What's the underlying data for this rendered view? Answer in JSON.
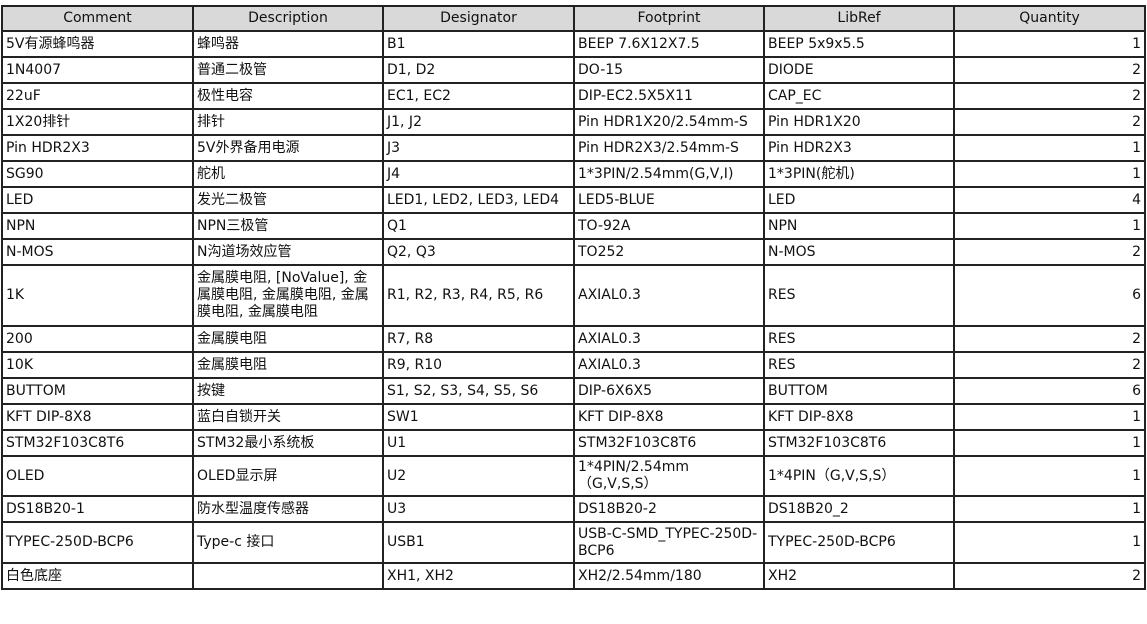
{
  "columns": [
    "Comment",
    "Description",
    "Designator",
    "Footprint",
    "LibRef",
    "Quantity"
  ],
  "rows": [
    {
      "comment": "5V有源蜂鸣器",
      "description": "蜂鸣器",
      "designator": "B1",
      "footprint": "BEEP 7.6X12X7.5",
      "libref": "BEEP 5x9x5.5",
      "quantity": "1"
    },
    {
      "comment": "1N4007",
      "description": "普通二极管",
      "designator": "D1, D2",
      "footprint": "DO-15",
      "libref": "DIODE",
      "quantity": "2"
    },
    {
      "comment": "22uF",
      "description": "极性电容",
      "designator": "EC1, EC2",
      "footprint": "DIP-EC2.5X5X11",
      "libref": "CAP_EC",
      "quantity": "2"
    },
    {
      "comment": "1X20排针",
      "description": "排针",
      "designator": "J1, J2",
      "footprint": "Pin HDR1X20/2.54mm-S",
      "libref": "Pin HDR1X20",
      "quantity": "2"
    },
    {
      "comment": "Pin HDR2X3",
      "description": "5V外界备用电源",
      "designator": "J3",
      "footprint": "Pin HDR2X3/2.54mm-S",
      "libref": "Pin HDR2X3",
      "quantity": "1"
    },
    {
      "comment": "SG90",
      "description": "舵机",
      "designator": "J4",
      "footprint": "1*3PIN/2.54mm(G,V,I)",
      "libref": "1*3PIN(舵机)",
      "quantity": "1"
    },
    {
      "comment": "LED",
      "description": "发光二极管",
      "designator": "LED1, LED2, LED3, LED4",
      "footprint": "LED5-BLUE",
      "libref": "LED",
      "quantity": "4"
    },
    {
      "comment": "NPN",
      "description": "NPN三极管",
      "designator": "Q1",
      "footprint": "TO-92A",
      "libref": "NPN",
      "quantity": "1"
    },
    {
      "comment": "N-MOS",
      "description": "N沟道场效应管",
      "designator": "Q2, Q3",
      "footprint": "TO252",
      "libref": "N-MOS",
      "quantity": "2"
    },
    {
      "comment": "1K",
      "description": "金属膜电阻, [NoValue], 金属膜电阻, 金属膜电阻, 金属膜电阻, 金属膜电阻",
      "designator": "R1, R2, R3, R4, R5, R6",
      "footprint": "AXIAL0.3",
      "libref": "RES",
      "quantity": "6"
    },
    {
      "comment": "200",
      "description": "金属膜电阻",
      "designator": "R7, R8",
      "footprint": "AXIAL0.3",
      "libref": "RES",
      "quantity": "2"
    },
    {
      "comment": "10K",
      "description": "金属膜电阻",
      "designator": "R9, R10",
      "footprint": "AXIAL0.3",
      "libref": "RES",
      "quantity": "2"
    },
    {
      "comment": "BUTTOM",
      "description": "按键",
      "designator": "S1, S2, S3, S4, S5, S6",
      "footprint": "DIP-6X6X5",
      "libref": "BUTTOM",
      "quantity": "6"
    },
    {
      "comment": "KFT DIP-8X8",
      "description": "蓝白自锁开关",
      "designator": "SW1",
      "footprint": "KFT DIP-8X8",
      "libref": "KFT DIP-8X8",
      "quantity": "1"
    },
    {
      "comment": "STM32F103C8T6",
      "description": "STM32最小系统板",
      "designator": "U1",
      "footprint": "STM32F103C8T6",
      "libref": "STM32F103C8T6",
      "quantity": "1"
    },
    {
      "comment": "OLED",
      "description": "OLED显示屏",
      "designator": "U2",
      "footprint": "1*4PIN/2.54mm （G,V,S,S）",
      "libref": "1*4PIN（G,V,S,S）",
      "quantity": "1"
    },
    {
      "comment": "DS18B20-1",
      "description": "防水型温度传感器",
      "designator": "U3",
      "footprint": "DS18B20-2",
      "libref": "DS18B20_2",
      "quantity": "1"
    },
    {
      "comment": "TYPEC-250D-BCP6",
      "description": "Type-c 接口",
      "designator": "USB1",
      "footprint": "USB-C-SMD_TYPEC-250D-BCP6",
      "libref": "TYPEC-250D-BCP6",
      "quantity": "1"
    },
    {
      "comment": "白色底座",
      "description": "",
      "designator": "XH1, XH2",
      "footprint": "XH2/2.54mm/180",
      "libref": "XH2",
      "quantity": "2"
    }
  ]
}
